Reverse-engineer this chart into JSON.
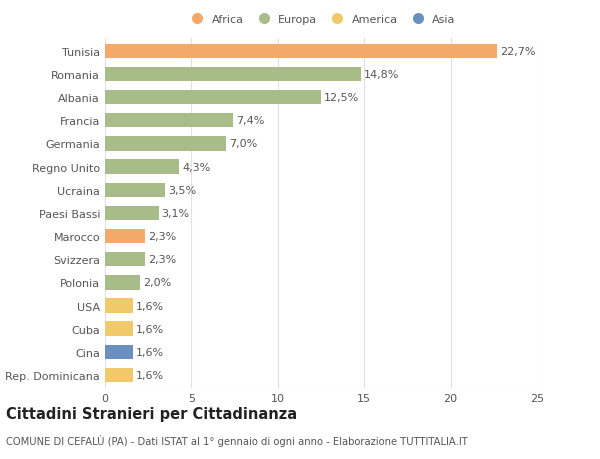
{
  "countries": [
    "Tunisia",
    "Romania",
    "Albania",
    "Francia",
    "Germania",
    "Regno Unito",
    "Ucraina",
    "Paesi Bassi",
    "Marocco",
    "Svizzera",
    "Polonia",
    "USA",
    "Cuba",
    "Cina",
    "Rep. Dominicana"
  ],
  "values": [
    22.7,
    14.8,
    12.5,
    7.4,
    7.0,
    4.3,
    3.5,
    3.1,
    2.3,
    2.3,
    2.0,
    1.6,
    1.6,
    1.6,
    1.6
  ],
  "labels": [
    "22,7%",
    "14,8%",
    "12,5%",
    "7,4%",
    "7,0%",
    "4,3%",
    "3,5%",
    "3,1%",
    "2,3%",
    "2,3%",
    "2,0%",
    "1,6%",
    "1,6%",
    "1,6%",
    "1,6%"
  ],
  "colors": [
    "#F4A96A",
    "#A8BC8A",
    "#A8BC8A",
    "#A8BC8A",
    "#A8BC8A",
    "#A8BC8A",
    "#A8BC8A",
    "#A8BC8A",
    "#F4A96A",
    "#A8BC8A",
    "#A8BC8A",
    "#F0C96A",
    "#F0C96A",
    "#6A8FC0",
    "#F0C96A"
  ],
  "legend_labels": [
    "Africa",
    "Europa",
    "America",
    "Asia"
  ],
  "legend_colors": [
    "#F4A96A",
    "#A8BC8A",
    "#F0C96A",
    "#6A8FC0"
  ],
  "title": "Cittadini Stranieri per Cittadinanza",
  "subtitle": "COMUNE DI CEFALÙ (PA) - Dati ISTAT al 1° gennaio di ogni anno - Elaborazione TUTTITALIA.IT",
  "xlim": [
    0,
    25
  ],
  "xticks": [
    0,
    5,
    10,
    15,
    20,
    25
  ],
  "background_color": "#ffffff",
  "grid_color": "#e0e0e0",
  "bar_height": 0.62,
  "label_fontsize": 8.0,
  "tick_fontsize": 8.0,
  "title_fontsize": 10.5,
  "subtitle_fontsize": 7.2
}
